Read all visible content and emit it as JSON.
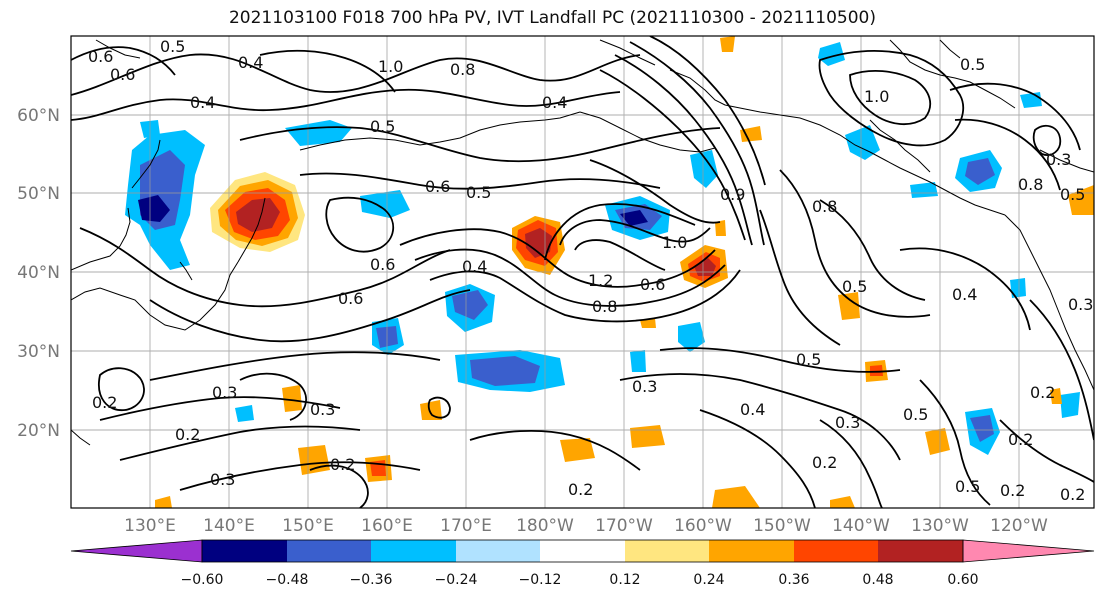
{
  "title": "2021103100 F018 700 hPa PV, IVT Landfall PC (2021110300 - 2021110500)",
  "lat_labels": [
    "60°N",
    "50°N",
    "40°N",
    "30°N",
    "20°N"
  ],
  "lon_labels": [
    "130°E",
    "140°E",
    "150°E",
    "160°E",
    "170°E",
    "180°W",
    "170°W",
    "160°W",
    "150°W",
    "140°W",
    "130°W",
    "120°W"
  ],
  "colorbar": {
    "colors": [
      "#9b30d0",
      "#000080",
      "#3a5fcd",
      "#00bfff",
      "#b0e2ff",
      "#ffffff",
      "#ffe680",
      "#ffa500",
      "#ff4500",
      "#b22222",
      "#ff88b0"
    ],
    "ticks": [
      "−0.60",
      "−0.48",
      "−0.36",
      "−0.24",
      "−0.12",
      "0.12",
      "0.24",
      "0.36",
      "0.48",
      "0.60"
    ]
  },
  "contour_labels": [
    "0.6",
    "0.5",
    "0.4",
    "1.0",
    "0.8",
    "0.6",
    "0.5",
    "0.4",
    "0.6",
    "0.5",
    "0.4",
    "0.6",
    "1.2",
    "0.8",
    "0.6",
    "1.0",
    "0.9",
    "0.8",
    "1.0",
    "0.3",
    "0.5",
    "0.5",
    "0.4",
    "0.3",
    "0.3",
    "0.2",
    "0.2",
    "0.3",
    "0.2",
    "0.3",
    "0.2",
    "0.2",
    "0.5",
    "0.2",
    "0.2",
    "0.4",
    "0.3",
    "0.4",
    "0.5",
    "0.6",
    "0.8",
    "0.5",
    "0.3",
    "0.5",
    "0.2",
    "0.2"
  ]
}
